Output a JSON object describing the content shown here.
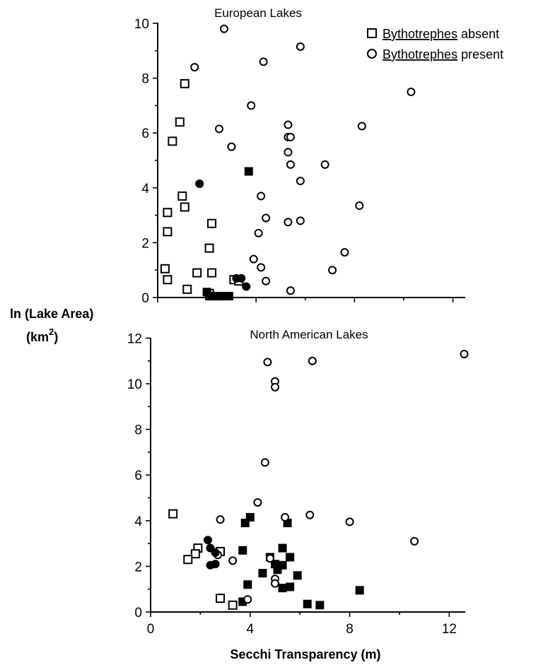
{
  "ylabel": "ln (Lake Area)",
  "ylabel_unit_prefix": "(km",
  "ylabel_unit_exp": "2",
  "ylabel_unit_suffix": ")",
  "xlabel": "Secchi Transparency (m)",
  "legend": {
    "absent_italic": "Bythotrephes",
    "absent_rest": " absent",
    "present_italic": "Bythotrephes",
    "present_rest": " present"
  },
  "chart_data": [
    {
      "type": "scatter",
      "title": "European Lakes",
      "xlim": [
        0,
        13
      ],
      "ylim": [
        0,
        10
      ],
      "yticks": [
        0,
        2,
        4,
        6,
        8,
        10
      ],
      "xticks": [
        0,
        4,
        8,
        12
      ],
      "grid": false,
      "legend_position": "top-right",
      "series": [
        {
          "name": "Bythotrephes absent",
          "marker": "open-square",
          "points": [
            [
              1.1,
              7.8
            ],
            [
              0.9,
              6.4
            ],
            [
              0.6,
              5.7
            ],
            [
              1.0,
              3.7
            ],
            [
              1.1,
              3.3
            ],
            [
              0.4,
              3.1
            ],
            [
              0.4,
              2.4
            ],
            [
              2.2,
              2.7
            ],
            [
              2.1,
              1.8
            ],
            [
              1.6,
              0.9
            ],
            [
              2.2,
              0.9
            ],
            [
              0.3,
              1.05
            ],
            [
              0.4,
              0.65
            ],
            [
              1.2,
              0.3
            ],
            [
              2.1,
              0.15
            ],
            [
              3.1,
              0.65
            ],
            [
              3.3,
              0.6
            ]
          ]
        },
        {
          "name": "absent (filled)",
          "marker": "filled-square",
          "points": [
            [
              3.7,
              4.6
            ],
            [
              2.0,
              0.2
            ],
            [
              2.1,
              0.05
            ],
            [
              2.3,
              0.05
            ],
            [
              2.5,
              0.05
            ],
            [
              2.7,
              0.05
            ],
            [
              2.9,
              0.05
            ]
          ]
        },
        {
          "name": "Bythotrephes present",
          "marker": "open-circle",
          "points": [
            [
              2.7,
              9.8
            ],
            [
              1.5,
              8.4
            ],
            [
              4.3,
              8.6
            ],
            [
              5.8,
              9.15
            ],
            [
              10.3,
              7.5
            ],
            [
              3.8,
              7.0
            ],
            [
              2.5,
              6.15
            ],
            [
              3.0,
              5.5
            ],
            [
              5.3,
              6.3
            ],
            [
              5.3,
              5.85
            ],
            [
              5.4,
              5.85
            ],
            [
              5.3,
              5.3
            ],
            [
              5.4,
              4.85
            ],
            [
              6.8,
              4.85
            ],
            [
              8.3,
              6.25
            ],
            [
              5.8,
              4.25
            ],
            [
              4.2,
              3.7
            ],
            [
              4.4,
              2.9
            ],
            [
              4.1,
              2.35
            ],
            [
              5.3,
              2.75
            ],
            [
              5.8,
              2.8
            ],
            [
              8.2,
              3.35
            ],
            [
              3.9,
              1.4
            ],
            [
              4.2,
              1.1
            ],
            [
              7.6,
              1.65
            ],
            [
              7.1,
              1.0
            ],
            [
              4.4,
              0.6
            ],
            [
              5.4,
              0.25
            ]
          ]
        },
        {
          "name": "present (filled)",
          "marker": "filled-circle",
          "points": [
            [
              1.7,
              4.15
            ],
            [
              3.2,
              0.7
            ],
            [
              3.4,
              0.7
            ],
            [
              3.6,
              0.4
            ]
          ]
        }
      ]
    },
    {
      "type": "scatter",
      "title": "North American Lakes",
      "xlim": [
        0,
        13
      ],
      "ylim": [
        0,
        12
      ],
      "yticks": [
        0,
        2,
        4,
        6,
        8,
        10,
        12
      ],
      "xticks": [
        0,
        4,
        8,
        12
      ],
      "grid": false,
      "series": [
        {
          "name": "Bythotrephes absent",
          "marker": "open-square",
          "points": [
            [
              0.9,
              4.3
            ],
            [
              1.9,
              2.8
            ],
            [
              1.8,
              2.55
            ],
            [
              1.5,
              2.3
            ],
            [
              2.8,
              2.65
            ],
            [
              2.8,
              0.6
            ],
            [
              3.3,
              0.3
            ]
          ]
        },
        {
          "name": "absent (filled)",
          "marker": "filled-square",
          "points": [
            [
              4.0,
              4.15
            ],
            [
              3.8,
              3.9
            ],
            [
              5.5,
              3.9
            ],
            [
              3.7,
              2.7
            ],
            [
              4.8,
              2.4
            ],
            [
              5.3,
              2.8
            ],
            [
              5.6,
              2.4
            ],
            [
              5.0,
              2.1
            ],
            [
              5.3,
              2.05
            ],
            [
              5.1,
              1.85
            ],
            [
              4.5,
              1.7
            ],
            [
              5.9,
              1.6
            ],
            [
              3.9,
              1.2
            ],
            [
              5.3,
              1.05
            ],
            [
              5.6,
              1.1
            ],
            [
              8.4,
              0.95
            ],
            [
              6.3,
              0.35
            ],
            [
              6.8,
              0.3
            ],
            [
              3.7,
              0.45
            ]
          ]
        },
        {
          "name": "Bythotrephes present",
          "marker": "open-circle",
          "points": [
            [
              4.7,
              10.95
            ],
            [
              5.0,
              10.1
            ],
            [
              5.0,
              9.85
            ],
            [
              6.5,
              11.0
            ],
            [
              12.6,
              11.3
            ],
            [
              4.6,
              6.55
            ],
            [
              4.3,
              4.8
            ],
            [
              2.8,
              4.05
            ],
            [
              5.4,
              4.15
            ],
            [
              6.4,
              4.25
            ],
            [
              8.0,
              3.95
            ],
            [
              10.6,
              3.1
            ],
            [
              2.7,
              2.5
            ],
            [
              3.3,
              2.25
            ],
            [
              4.8,
              2.35
            ],
            [
              5.0,
              1.45
            ],
            [
              5.0,
              1.25
            ],
            [
              3.9,
              0.55
            ]
          ]
        },
        {
          "name": "present (filled)",
          "marker": "filled-circle",
          "points": [
            [
              2.3,
              3.15
            ],
            [
              2.4,
              2.8
            ],
            [
              2.6,
              2.6
            ],
            [
              2.4,
              2.05
            ],
            [
              2.6,
              2.1
            ]
          ]
        }
      ]
    }
  ]
}
